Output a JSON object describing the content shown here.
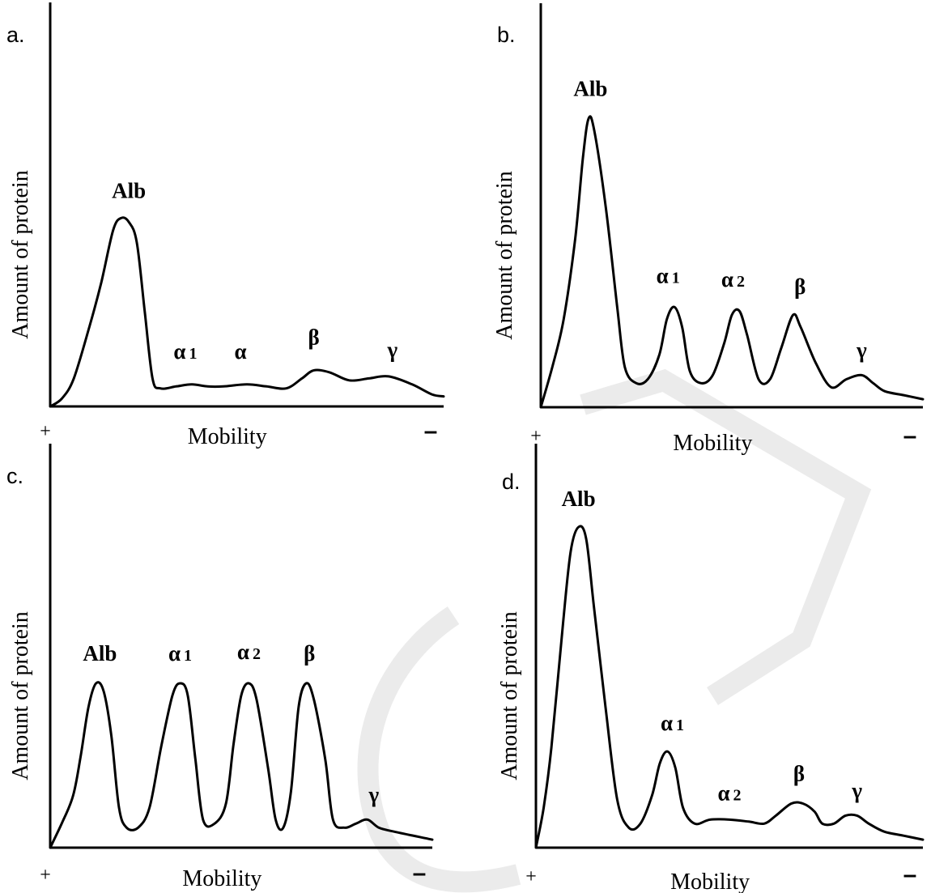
{
  "chart_data": [
    {
      "type": "line",
      "panel": "a.",
      "xlabel": "Mobility",
      "ylabel": "Amount of protein",
      "pole_left": "+",
      "pole_right": "–",
      "peaks": [
        {
          "label": "Alb",
          "sub": "",
          "x": 0.2,
          "y": 0.46
        },
        {
          "label": "α",
          "sub": "1",
          "x": 0.36,
          "y": 0.055
        },
        {
          "label": "α",
          "sub": "",
          "x": 0.5,
          "y": 0.055
        },
        {
          "label": "β",
          "sub": "",
          "x": 0.67,
          "y": 0.09
        },
        {
          "label": "γ",
          "sub": "",
          "x": 0.87,
          "y": 0.075
        }
      ],
      "curve": [
        [
          0,
          0
        ],
        [
          0.03,
          0.02
        ],
        [
          0.06,
          0.07
        ],
        [
          0.1,
          0.2
        ],
        [
          0.13,
          0.31
        ],
        [
          0.16,
          0.44
        ],
        [
          0.18,
          0.47
        ],
        [
          0.2,
          0.46
        ],
        [
          0.22,
          0.41
        ],
        [
          0.24,
          0.24
        ],
        [
          0.26,
          0.07
        ],
        [
          0.28,
          0.045
        ],
        [
          0.32,
          0.05
        ],
        [
          0.36,
          0.055
        ],
        [
          0.4,
          0.05
        ],
        [
          0.44,
          0.05
        ],
        [
          0.5,
          0.055
        ],
        [
          0.55,
          0.05
        ],
        [
          0.6,
          0.045
        ],
        [
          0.64,
          0.07
        ],
        [
          0.67,
          0.09
        ],
        [
          0.71,
          0.085
        ],
        [
          0.76,
          0.065
        ],
        [
          0.81,
          0.07
        ],
        [
          0.86,
          0.075
        ],
        [
          0.92,
          0.055
        ],
        [
          0.97,
          0.03
        ],
        [
          1.0,
          0.025
        ]
      ],
      "xlim": [
        0,
        1
      ],
      "ylim": [
        0,
        1
      ]
    },
    {
      "type": "line",
      "panel": "b.",
      "xlabel": "Mobility",
      "ylabel": "Amount of protein",
      "pole_left": "+",
      "pole_right": "–",
      "peaks": [
        {
          "label": "Alb",
          "sub": "",
          "x": 0.13,
          "y": 0.72
        },
        {
          "label": "α",
          "sub": "1",
          "x": 0.35,
          "y": 0.25
        },
        {
          "label": "α",
          "sub": "2",
          "x": 0.52,
          "y": 0.24
        },
        {
          "label": "β",
          "sub": "",
          "x": 0.67,
          "y": 0.23
        },
        {
          "label": "γ",
          "sub": "",
          "x": 0.84,
          "y": 0.08
        }
      ],
      "curve": [
        [
          0,
          0
        ],
        [
          0.03,
          0.1
        ],
        [
          0.06,
          0.22
        ],
        [
          0.09,
          0.42
        ],
        [
          0.11,
          0.62
        ],
        [
          0.125,
          0.72
        ],
        [
          0.14,
          0.69
        ],
        [
          0.17,
          0.5
        ],
        [
          0.2,
          0.25
        ],
        [
          0.22,
          0.1
        ],
        [
          0.25,
          0.06
        ],
        [
          0.28,
          0.07
        ],
        [
          0.31,
          0.13
        ],
        [
          0.33,
          0.22
        ],
        [
          0.35,
          0.25
        ],
        [
          0.37,
          0.2
        ],
        [
          0.39,
          0.09
        ],
        [
          0.42,
          0.06
        ],
        [
          0.45,
          0.08
        ],
        [
          0.48,
          0.16
        ],
        [
          0.5,
          0.23
        ],
        [
          0.52,
          0.24
        ],
        [
          0.54,
          0.18
        ],
        [
          0.57,
          0.07
        ],
        [
          0.6,
          0.07
        ],
        [
          0.63,
          0.15
        ],
        [
          0.66,
          0.23
        ],
        [
          0.68,
          0.2
        ],
        [
          0.72,
          0.11
        ],
        [
          0.76,
          0.05
        ],
        [
          0.8,
          0.07
        ],
        [
          0.84,
          0.08
        ],
        [
          0.87,
          0.06
        ],
        [
          0.9,
          0.04
        ],
        [
          0.95,
          0.03
        ],
        [
          1.0,
          0.02
        ]
      ],
      "xlim": [
        0,
        1
      ],
      "ylim": [
        0,
        1
      ]
    },
    {
      "type": "line",
      "panel": "c.",
      "xlabel": "Mobility",
      "ylabel": "Amount of protein",
      "pole_left": "+",
      "pole_right": "–",
      "peaks": [
        {
          "label": "Alb",
          "sub": "",
          "x": 0.13,
          "y": 0.41
        },
        {
          "label": "α",
          "sub": "1",
          "x": 0.34,
          "y": 0.41
        },
        {
          "label": "α",
          "sub": "2",
          "x": 0.52,
          "y": 0.41
        },
        {
          "label": "β",
          "sub": "",
          "x": 0.67,
          "y": 0.41
        },
        {
          "label": "γ",
          "sub": "",
          "x": 0.83,
          "y": 0.07
        }
      ],
      "curve": [
        [
          0,
          0
        ],
        [
          0.03,
          0.06
        ],
        [
          0.06,
          0.13
        ],
        [
          0.08,
          0.23
        ],
        [
          0.1,
          0.35
        ],
        [
          0.12,
          0.41
        ],
        [
          0.14,
          0.39
        ],
        [
          0.16,
          0.28
        ],
        [
          0.18,
          0.1
        ],
        [
          0.2,
          0.05
        ],
        [
          0.23,
          0.05
        ],
        [
          0.26,
          0.1
        ],
        [
          0.29,
          0.25
        ],
        [
          0.32,
          0.38
        ],
        [
          0.34,
          0.41
        ],
        [
          0.36,
          0.38
        ],
        [
          0.38,
          0.22
        ],
        [
          0.4,
          0.07
        ],
        [
          0.43,
          0.06
        ],
        [
          0.46,
          0.11
        ],
        [
          0.48,
          0.26
        ],
        [
          0.5,
          0.38
        ],
        [
          0.52,
          0.41
        ],
        [
          0.54,
          0.37
        ],
        [
          0.57,
          0.2
        ],
        [
          0.59,
          0.07
        ],
        [
          0.61,
          0.05
        ],
        [
          0.63,
          0.14
        ],
        [
          0.65,
          0.35
        ],
        [
          0.67,
          0.41
        ],
        [
          0.69,
          0.37
        ],
        [
          0.72,
          0.22
        ],
        [
          0.74,
          0.07
        ],
        [
          0.77,
          0.05
        ],
        [
          0.8,
          0.06
        ],
        [
          0.83,
          0.07
        ],
        [
          0.86,
          0.05
        ],
        [
          0.9,
          0.04
        ],
        [
          1.0,
          0.02
        ]
      ],
      "xlim": [
        0,
        1
      ],
      "ylim": [
        0,
        1
      ]
    },
    {
      "type": "line",
      "panel": "d.",
      "xlabel": "Mobility",
      "ylabel": "Amount of protein",
      "pole_left": "+",
      "pole_right": "–",
      "peaks": [
        {
          "label": "Alb",
          "sub": "",
          "x": 0.11,
          "y": 0.8
        },
        {
          "label": "α",
          "sub": "1",
          "x": 0.34,
          "y": 0.24
        },
        {
          "label": "α",
          "sub": "2",
          "x": 0.5,
          "y": 0.07
        },
        {
          "label": "β",
          "sub": "",
          "x": 0.68,
          "y": 0.11
        },
        {
          "label": "γ",
          "sub": "",
          "x": 0.83,
          "y": 0.08
        }
      ],
      "curve": [
        [
          0,
          0
        ],
        [
          0.02,
          0.1
        ],
        [
          0.04,
          0.25
        ],
        [
          0.07,
          0.56
        ],
        [
          0.09,
          0.74
        ],
        [
          0.11,
          0.8
        ],
        [
          0.13,
          0.77
        ],
        [
          0.15,
          0.6
        ],
        [
          0.18,
          0.35
        ],
        [
          0.21,
          0.12
        ],
        [
          0.24,
          0.05
        ],
        [
          0.27,
          0.06
        ],
        [
          0.3,
          0.13
        ],
        [
          0.32,
          0.21
        ],
        [
          0.34,
          0.24
        ],
        [
          0.36,
          0.2
        ],
        [
          0.38,
          0.1
        ],
        [
          0.41,
          0.06
        ],
        [
          0.45,
          0.07
        ],
        [
          0.5,
          0.07
        ],
        [
          0.55,
          0.065
        ],
        [
          0.59,
          0.06
        ],
        [
          0.62,
          0.08
        ],
        [
          0.66,
          0.11
        ],
        [
          0.69,
          0.11
        ],
        [
          0.72,
          0.09
        ],
        [
          0.74,
          0.06
        ],
        [
          0.77,
          0.06
        ],
        [
          0.8,
          0.08
        ],
        [
          0.83,
          0.08
        ],
        [
          0.86,
          0.06
        ],
        [
          0.9,
          0.04
        ],
        [
          0.95,
          0.03
        ],
        [
          1.0,
          0.02
        ]
      ],
      "xlim": [
        0,
        1
      ],
      "ylim": [
        0,
        1
      ]
    }
  ]
}
